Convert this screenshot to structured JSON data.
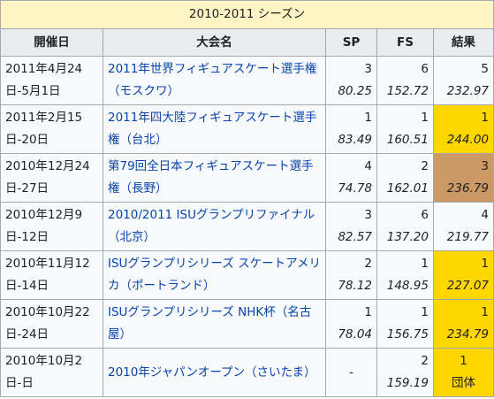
{
  "table": {
    "season": "2010-2011 シーズン",
    "headers": {
      "date": "開催日",
      "event": "大会名",
      "sp": "SP",
      "fs": "FS",
      "result": "結果"
    },
    "rows": [
      {
        "date": "2011年4月24日-5月1日",
        "event": "2011年世界フィギュアスケート選手権（モスクワ）",
        "sp_rank": "3",
        "sp_score": "80.25",
        "fs_rank": "6",
        "fs_score": "152.72",
        "res_rank": "5",
        "res_score": "232.97",
        "medal": "none"
      },
      {
        "date": "2011年2月15日-20日",
        "event": "2011年四大陸フィギュアスケート選手権（台北）",
        "sp_rank": "1",
        "sp_score": "83.49",
        "fs_rank": "1",
        "fs_score": "160.51",
        "res_rank": "1",
        "res_score": "244.00",
        "medal": "gold"
      },
      {
        "date": "2010年12月24日-27日",
        "event": "第79回全日本フィギュアスケート選手権（長野）",
        "sp_rank": "4",
        "sp_score": "74.78",
        "fs_rank": "2",
        "fs_score": "162.01",
        "res_rank": "3",
        "res_score": "236.79",
        "medal": "bronze"
      },
      {
        "date": "2010年12月9日-12日",
        "event": "2010/2011 ISUグランプリファイナル（北京）",
        "sp_rank": "3",
        "sp_score": "82.57",
        "fs_rank": "6",
        "fs_score": "137.20",
        "res_rank": "4",
        "res_score": "219.77",
        "medal": "none"
      },
      {
        "date": "2010年11月12日-14日",
        "event": "ISUグランプリシリーズ スケートアメリカ（ポートランド）",
        "sp_rank": "2",
        "sp_score": "78.12",
        "fs_rank": "1",
        "fs_score": "148.95",
        "res_rank": "1",
        "res_score": "227.07",
        "medal": "gold"
      },
      {
        "date": "2010年10月22日-24日",
        "event": "ISUグランプリシリーズ NHK杯（名古屋）",
        "sp_rank": "1",
        "sp_score": "78.04",
        "fs_rank": "1",
        "fs_score": "156.75",
        "res_rank": "1",
        "res_score": "234.79",
        "medal": "gold"
      },
      {
        "date": "2010年10月2日-日",
        "event": "2010年ジャパンオープン（さいたま）",
        "sp_rank": "-",
        "sp_score": "",
        "fs_rank": "2",
        "fs_score": "159.19",
        "res_rank": "1",
        "res_score": "団体",
        "medal": "gold"
      }
    ]
  },
  "colors": {
    "season_bg": "#fff5c4",
    "header_bg": "#eaecf0",
    "cell_bg": "#f8f9fa",
    "gold": "#ffd700",
    "bronze": "#cc9966",
    "link": "#0645ad",
    "border": "#a2a9b1"
  }
}
